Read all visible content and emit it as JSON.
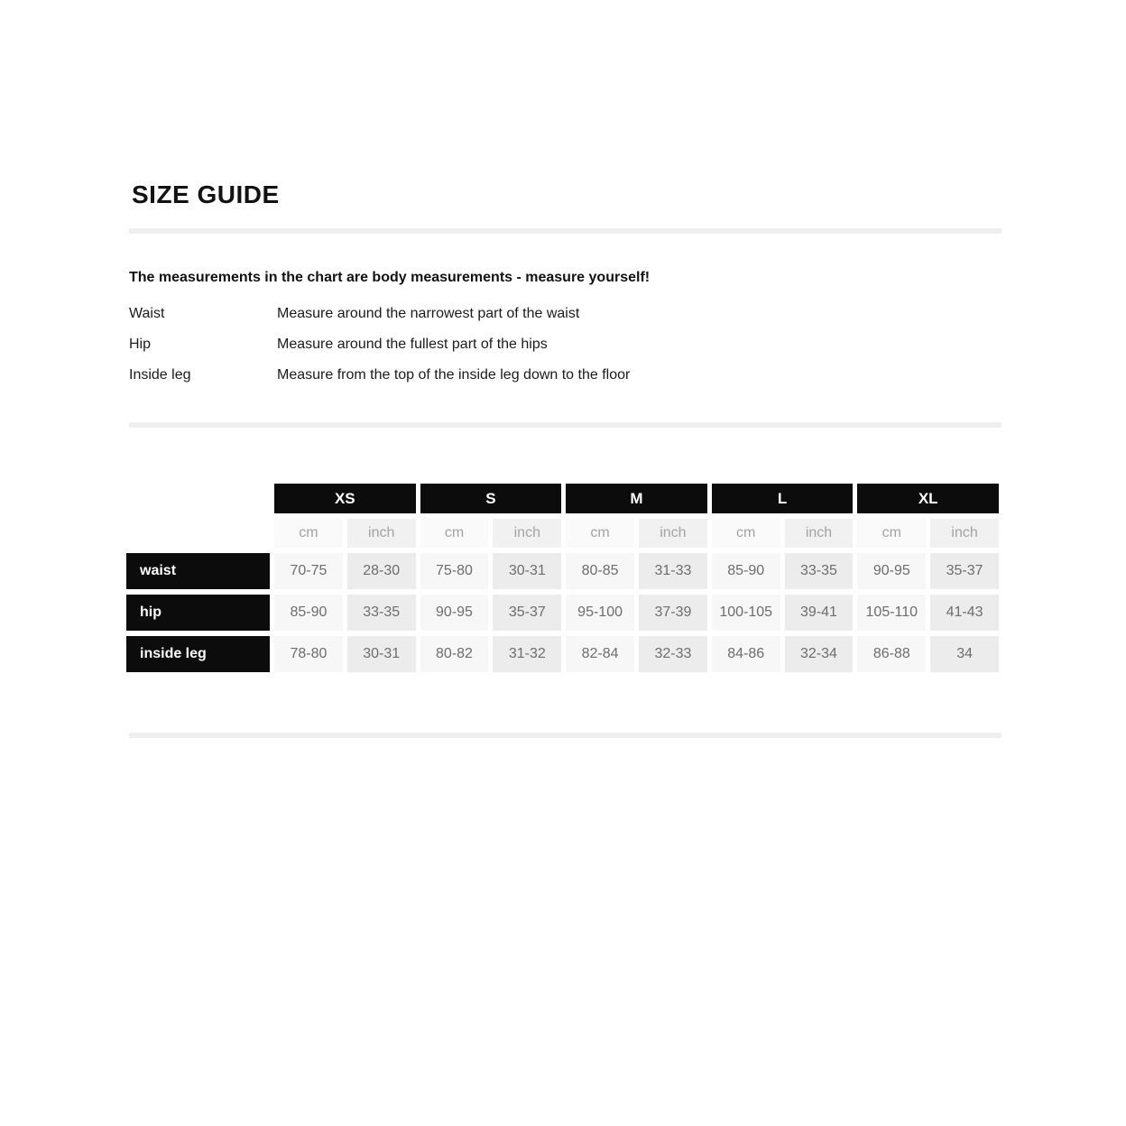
{
  "page": {
    "title": "SIZE GUIDE"
  },
  "intro": {
    "heading": "The measurements in the chart are body measurements - measure yourself!"
  },
  "definitions": [
    {
      "term": "Waist",
      "description": "Measure around the narrowest part of the waist"
    },
    {
      "term": "Hip",
      "description": "Measure around the fullest part of the hips"
    },
    {
      "term": "Inside leg",
      "description": "Measure from the top of the inside leg down to the floor"
    }
  ],
  "size_table": {
    "sizes": [
      "XS",
      "S",
      "M",
      "L",
      "XL"
    ],
    "units": [
      "cm",
      "inch"
    ],
    "rows": [
      {
        "label": "waist",
        "values": [
          "70-75",
          "28-30",
          "75-80",
          "30-31",
          "80-85",
          "31-33",
          "85-90",
          "33-35",
          "90-95",
          "35-37"
        ]
      },
      {
        "label": "hip",
        "values": [
          "85-90",
          "33-35",
          "90-95",
          "35-37",
          "95-100",
          "37-39",
          "100-105",
          "39-41",
          "105-110",
          "41-43"
        ]
      },
      {
        "label": "inside leg",
        "values": [
          "78-80",
          "30-31",
          "80-82",
          "31-32",
          "82-84",
          "32-33",
          "84-86",
          "32-34",
          "86-88",
          "34"
        ]
      }
    ]
  },
  "colors": {
    "header_bg": "#0c0c0c",
    "header_text": "#ffffff",
    "divider": "#efefef",
    "unit_cm_bg": "#fafafa",
    "unit_inch_bg": "#f1f1f1",
    "unit_text": "#a3a3a3",
    "value_cm_bg": "#f7f7f7",
    "value_inch_bg": "#ececec",
    "value_text": "#6d6d6d"
  }
}
